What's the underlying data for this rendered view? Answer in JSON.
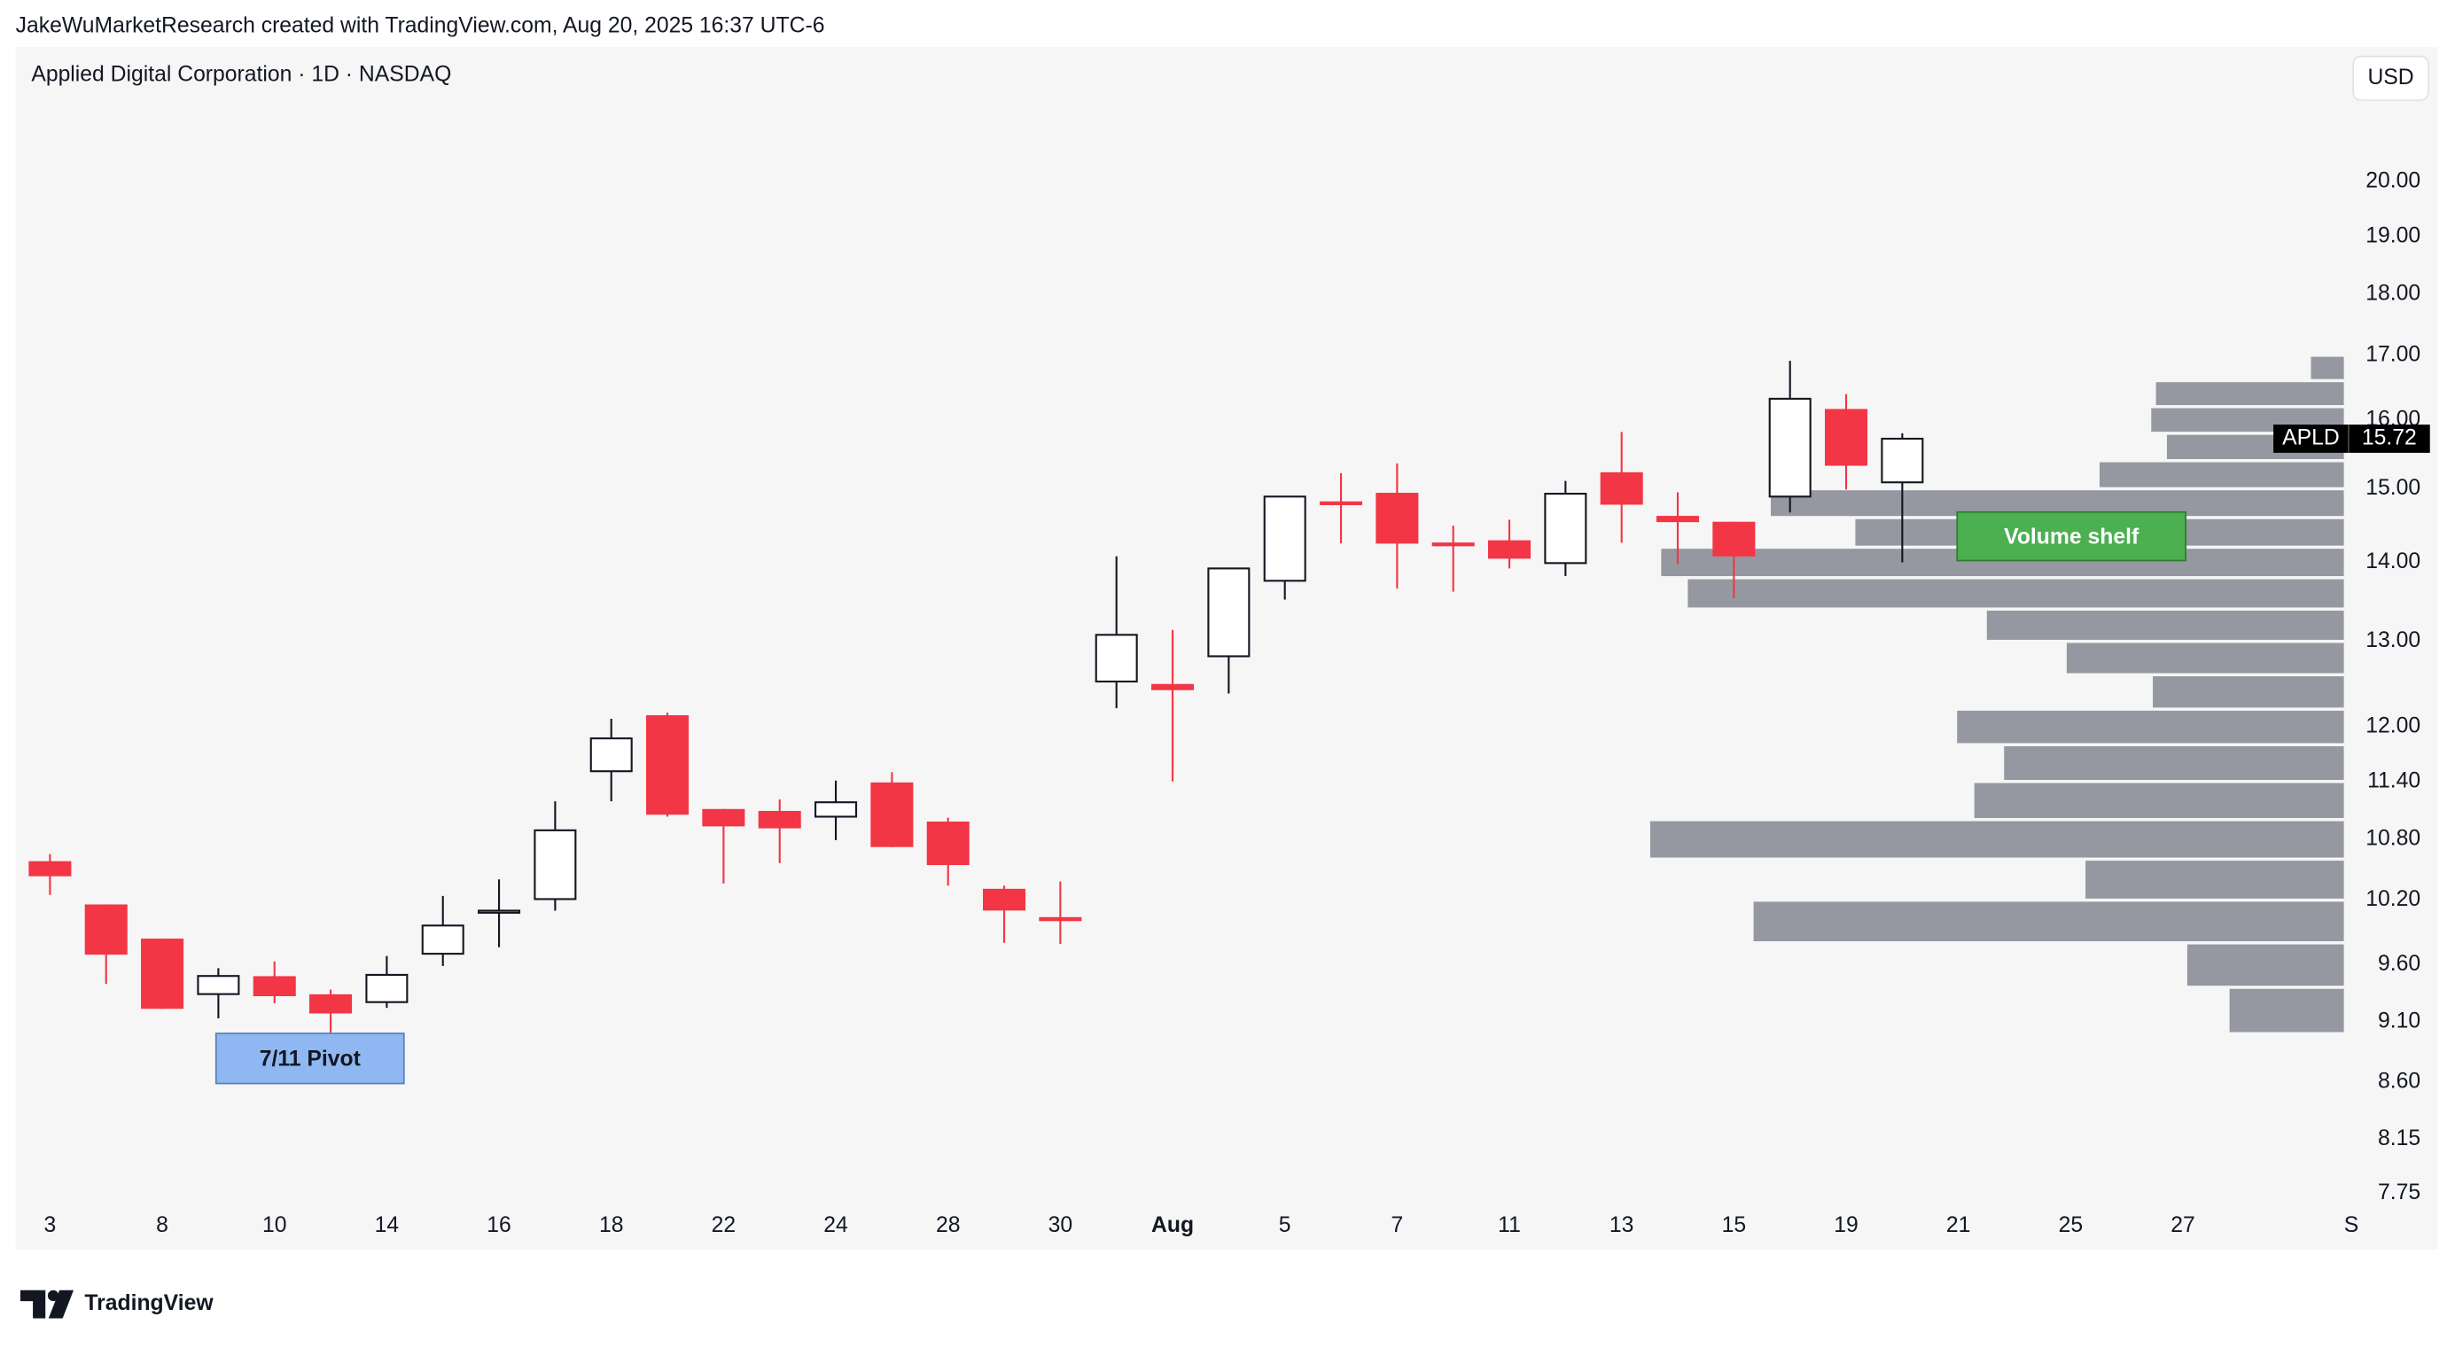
{
  "header": {
    "attribution": "JakeWuMarketResearch created with TradingView.com, Aug 20, 2025 16:37 UTC-6"
  },
  "chart_data": {
    "type": "candlestick",
    "title": "Applied Digital Corporation · 1D · NASDAQ",
    "currency": "USD",
    "categories": [
      "3",
      null,
      "8",
      null,
      "10",
      null,
      "14",
      null,
      "16",
      null,
      "18",
      null,
      "22",
      null,
      "24",
      null,
      "28",
      null,
      "30",
      null,
      "Aug",
      null,
      "5",
      null,
      "7",
      null,
      "11",
      null,
      "13",
      null,
      "15",
      null,
      "19",
      null,
      "21",
      null,
      "25",
      null,
      "27",
      null,
      null,
      "S"
    ],
    "open": [
      10.57,
      10.15,
      9.83,
      9.34,
      9.49,
      9.33,
      9.27,
      9.7,
      10.08,
      10.21,
      11.51,
      12.12,
      11.1,
      11.08,
      11.03,
      11.38,
      10.97,
      10.3,
      10.03,
      12.52,
      12.48,
      12.82,
      13.76,
      14.81,
      14.93,
      14.25,
      14.28,
      13.99,
      15.22,
      14.61,
      14.53,
      14.89,
      16.15,
      15.09,
      null,
      null,
      null,
      null,
      null,
      null,
      null,
      null
    ],
    "high": [
      10.65,
      10.16,
      9.84,
      9.57,
      9.63,
      9.38,
      9.68,
      10.24,
      10.4,
      11.19,
      12.09,
      12.16,
      11.11,
      11.21,
      11.41,
      11.5,
      11.02,
      10.34,
      10.38,
      14.08,
      13.14,
      13.93,
      14.9,
      15.22,
      15.36,
      14.49,
      14.57,
      15.11,
      15.82,
      14.95,
      14.54,
      16.91,
      16.39,
      15.8,
      null,
      null,
      null,
      null,
      null,
      null,
      null,
      null
    ],
    "low": [
      10.25,
      9.43,
      9.21,
      9.13,
      9.26,
      9.0,
      9.22,
      9.59,
      9.76,
      10.1,
      11.19,
      11.03,
      10.36,
      10.56,
      10.79,
      10.72,
      10.34,
      9.8,
      9.79,
      12.21,
      11.4,
      12.38,
      13.52,
      14.25,
      13.66,
      13.62,
      13.92,
      13.82,
      14.26,
      13.98,
      13.54,
      14.67,
      14.99,
      14.0,
      null,
      null,
      null,
      null,
      null,
      null,
      null,
      null
    ],
    "close": [
      10.44,
      9.7,
      9.22,
      9.5,
      9.33,
      9.18,
      9.51,
      9.96,
      10.1,
      10.89,
      11.87,
      11.06,
      10.94,
      10.92,
      11.18,
      10.73,
      10.55,
      10.11,
      10.01,
      13.08,
      12.43,
      13.92,
      14.89,
      14.79,
      14.26,
      14.23,
      14.06,
      14.93,
      14.79,
      14.55,
      14.09,
      16.32,
      15.34,
      15.72,
      null,
      null,
      null,
      null,
      null,
      null,
      null,
      null
    ],
    "up_color": "#ffffff",
    "down_color": "#f23645",
    "outline_color": "#131722",
    "log_scale": true,
    "ylim": [
      7.66,
      21.4
    ],
    "yticks": [
      {
        "value": 20,
        "label": "20.00"
      },
      {
        "value": 19,
        "label": "19.00"
      },
      {
        "value": 18,
        "label": "18.00"
      },
      {
        "value": 17,
        "label": "17.00"
      },
      {
        "value": 16,
        "label": "16.00"
      },
      {
        "value": 15,
        "label": "15.00"
      },
      {
        "value": 14,
        "label": "14.00"
      },
      {
        "value": 13,
        "label": "13.00"
      },
      {
        "value": 12,
        "label": "12.00"
      },
      {
        "value": 11.4,
        "label": "11.40"
      },
      {
        "value": 10.8,
        "label": "10.80"
      },
      {
        "value": 10.2,
        "label": "10.20"
      },
      {
        "value": 9.6,
        "label": "9.60"
      },
      {
        "value": 9.1,
        "label": "9.10"
      },
      {
        "value": 8.6,
        "label": "8.60"
      },
      {
        "value": 8.15,
        "label": "8.15"
      },
      {
        "value": 7.75,
        "label": "7.75"
      }
    ],
    "grid": false,
    "last_price": {
      "symbol": "APLD",
      "value": 15.72
    },
    "volume_profile": {
      "color": "#9598a1",
      "bins": [
        9.0,
        9.4,
        9.8,
        10.2,
        10.6,
        11.0,
        11.4,
        11.8,
        12.2,
        12.6,
        13.0,
        13.4,
        13.8,
        14.2,
        14.6,
        15.0,
        15.4,
        15.8,
        16.2,
        16.6,
        17.0
      ],
      "volumes": [
        73,
        100,
        377,
        165,
        443,
        236,
        217,
        247,
        122,
        177,
        228,
        419,
        436,
        312,
        366,
        156,
        113,
        123,
        120,
        21
      ]
    },
    "annotations": [
      {
        "text": "7/11 Pivot",
        "color": "#8fb8f2",
        "text_color": "#131722"
      },
      {
        "text": "Volume shelf",
        "color": "#4caf50",
        "text_color": "#ffffff"
      }
    ]
  },
  "footer": {
    "brand": "TradingView"
  }
}
